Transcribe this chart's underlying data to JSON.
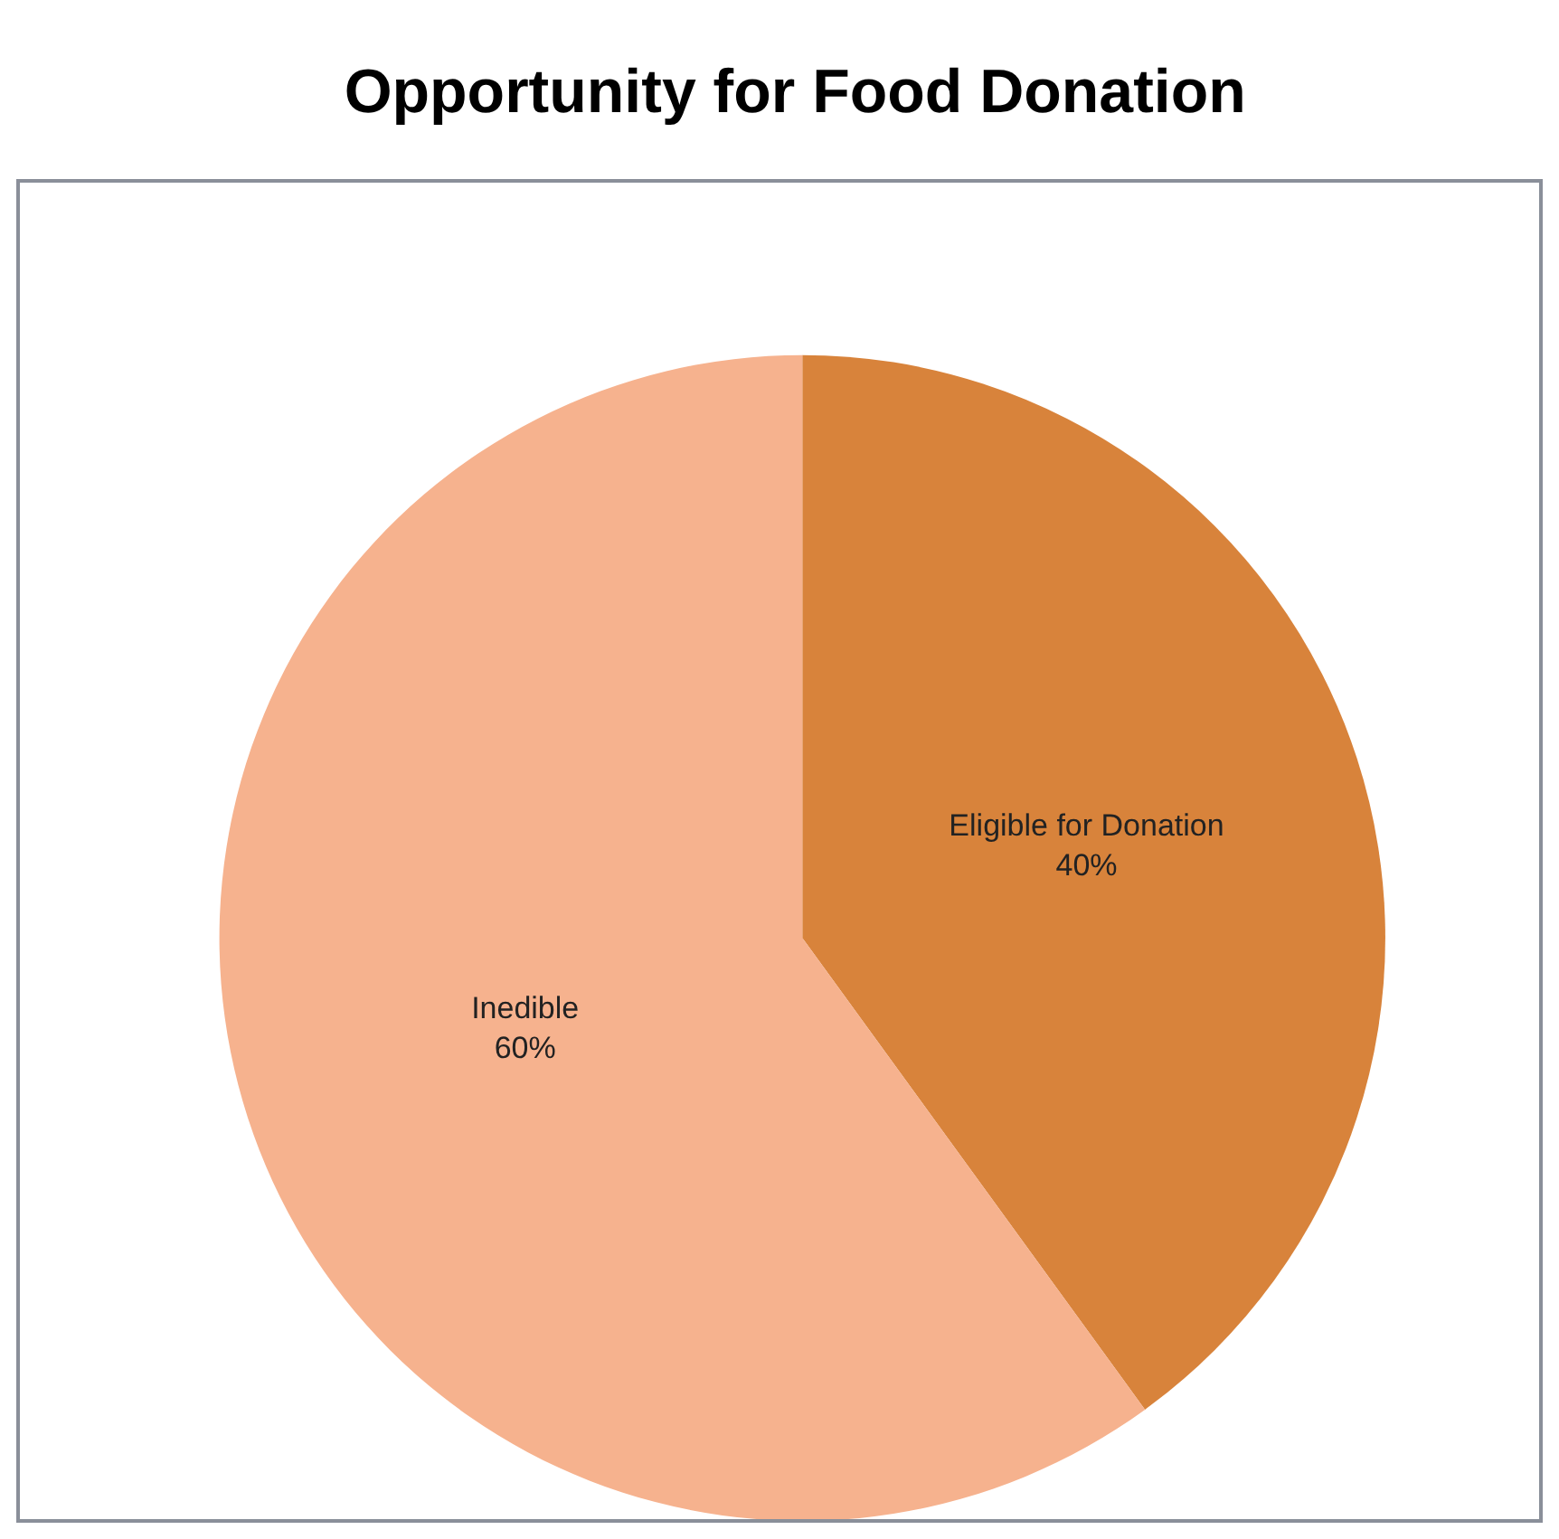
{
  "chart_data": {
    "type": "pie",
    "title": "Opportunity for Food Donation",
    "categories": [
      "Eligible for Donation",
      "Inedible"
    ],
    "values": [
      40,
      60
    ],
    "colors": [
      "#d8833b",
      "#f6b28e"
    ],
    "value_labels": [
      "40%",
      "60%"
    ],
    "legend": false
  }
}
